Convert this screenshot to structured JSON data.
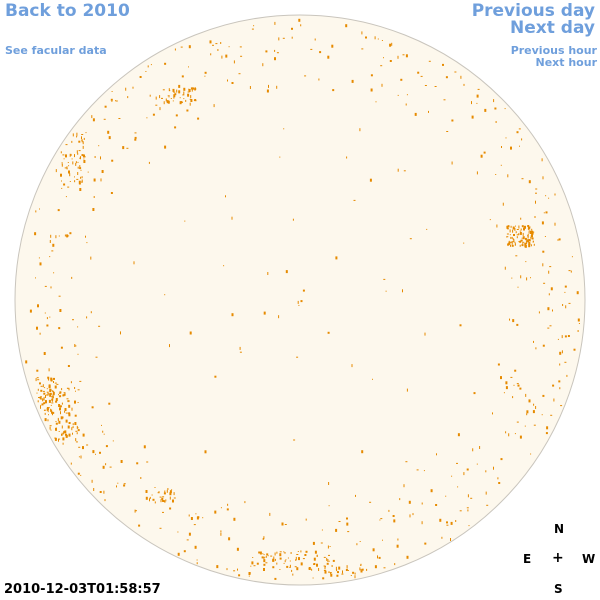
{
  "nav": {
    "back_label": "Back to 2010",
    "facular_label": "See facular data",
    "prev_day_label": "Previous day",
    "next_day_label": "Next day",
    "prev_hour_label": "Previous hour",
    "next_hour_label": "Next hour"
  },
  "compass": {
    "north": "N",
    "east": "E",
    "center": "+",
    "west": "W",
    "south": "S"
  },
  "timestamp": "2010-12-03T01:58:57",
  "colors": {
    "disk_fill": "#fdf8ed",
    "disk_outline": "#c9c5bd",
    "facula": "#e68a00",
    "link": "#6f9fdc"
  }
}
